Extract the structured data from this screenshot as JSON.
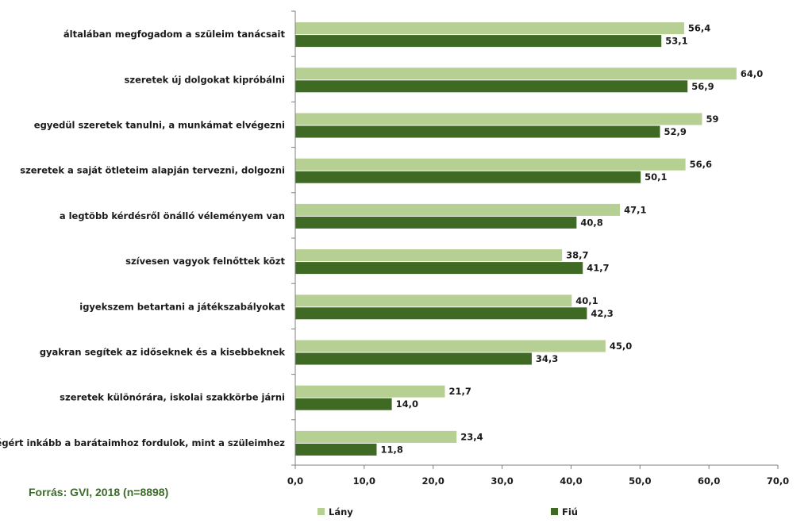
{
  "chart_data": {
    "type": "bar",
    "orientation": "horizontal",
    "categories": [
      "általában megfogadom a szüleim tanácsait",
      "szeretek új dolgokat kipróbálni",
      "egyedül szeretek tanulni, a munkámat elvégezni",
      "szeretek a saját ötleteim alapján tervezni, dolgozni",
      "a legtöbb kérdésről önálló véleményem van",
      "szívesen vagyok felnőttek közt",
      "igyekszem betartani a játékszabályokat",
      "gyakran segítek az időseknek és a kisebbeknek",
      "szeretek különórára, iskolai szakkörbe járni",
      "segítségért inkább a barátaimhoz fordulok, mint a szüleimhez"
    ],
    "series": [
      {
        "name": "Lány",
        "color": "#b6cf92",
        "values": [
          56.4,
          64.0,
          59,
          56.6,
          47.1,
          38.7,
          40.1,
          45.0,
          21.7,
          23.4
        ],
        "value_labels": [
          "56,4",
          "64,0",
          "59",
          "56,6",
          "47,1",
          "38,7",
          "40,1",
          "45,0",
          "21,7",
          "23,4"
        ]
      },
      {
        "name": "Fiú",
        "color": "#3f6a24",
        "values": [
          53.1,
          56.9,
          52.9,
          50.1,
          40.8,
          41.7,
          42.3,
          34.3,
          14.0,
          11.8
        ],
        "value_labels": [
          "53,1",
          "56,9",
          "52,9",
          "50,1",
          "40,8",
          "41,7",
          "42,3",
          "34,3",
          "14,0",
          "11,8"
        ]
      }
    ],
    "xlim": [
      0,
      70
    ],
    "xticks": [
      0,
      10,
      20,
      30,
      40,
      50,
      60,
      70
    ],
    "xtick_labels": [
      "0,0",
      "10,0",
      "20,0",
      "30,0",
      "40,0",
      "50,0",
      "60,0",
      "70,0"
    ],
    "grid": false,
    "legend_position": "bottom"
  },
  "source": "Forrás: GVI, 2018 (n=8898)"
}
